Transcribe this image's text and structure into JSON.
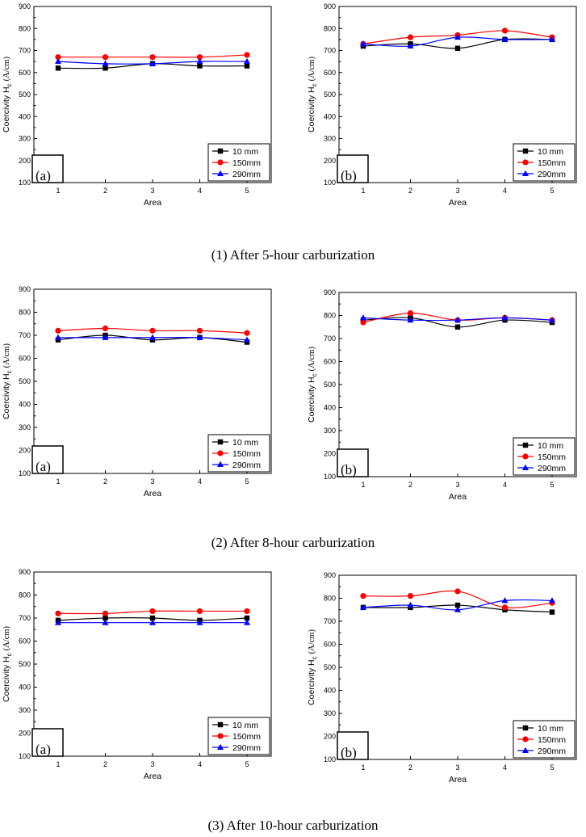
{
  "captions": [
    "(1) After 5-hour carburization",
    "(2) After 8-hour carburization",
    "(3) After 10-hour carburization"
  ],
  "colors": {
    "s10": "#000000",
    "s150": "#ff0000",
    "s290": "#0000ff"
  },
  "chart_data": [
    {
      "type": "line",
      "panel_label": "(a)",
      "xlabel": "Area",
      "ylabel_main": "Coercivity H",
      "ylabel_sub": "c",
      "ylabel_unit": "(A/cm)",
      "categories": [
        "1",
        "2",
        "3",
        "4",
        "5"
      ],
      "yticks": [
        "100",
        "200",
        "300",
        "400",
        "500",
        "600",
        "700",
        "800",
        "900"
      ],
      "ylim": [
        100,
        900
      ],
      "series": [
        {
          "name": "10 mm",
          "marker": "square",
          "values": [
            620,
            620,
            640,
            630,
            630
          ]
        },
        {
          "name": "150mm",
          "marker": "circle",
          "values": [
            670,
            670,
            670,
            670,
            680
          ]
        },
        {
          "name": "290mm",
          "marker": "triangle",
          "values": [
            650,
            640,
            640,
            650,
            650
          ]
        }
      ]
    },
    {
      "type": "line",
      "panel_label": "(b)",
      "xlabel": "Area",
      "ylabel_main": "Coercivity H",
      "ylabel_sub": "c",
      "ylabel_unit": "(A/cm)",
      "categories": [
        "1",
        "2",
        "3",
        "4",
        "5"
      ],
      "yticks": [
        "100",
        "200",
        "300",
        "400",
        "500",
        "600",
        "700",
        "800",
        "900"
      ],
      "ylim": [
        100,
        900
      ],
      "series": [
        {
          "name": "10 mm",
          "marker": "square",
          "values": [
            720,
            730,
            710,
            750,
            750
          ]
        },
        {
          "name": "150mm",
          "marker": "circle",
          "values": [
            730,
            760,
            770,
            790,
            760
          ]
        },
        {
          "name": "290mm",
          "marker": "triangle",
          "values": [
            730,
            720,
            760,
            750,
            750
          ]
        }
      ]
    },
    {
      "type": "line",
      "panel_label": "(a)",
      "xlabel": "Area",
      "ylabel_main": "Coercivity H",
      "ylabel_sub": "c",
      "ylabel_unit": "(A/cm)",
      "categories": [
        "1",
        "2",
        "3",
        "4",
        "5"
      ],
      "yticks": [
        "100",
        "200",
        "300",
        "400",
        "500",
        "600",
        "700",
        "800",
        "900"
      ],
      "ylim": [
        100,
        900
      ],
      "series": [
        {
          "name": "10 mm",
          "marker": "square",
          "values": [
            680,
            700,
            680,
            690,
            670
          ]
        },
        {
          "name": "150mm",
          "marker": "circle",
          "values": [
            720,
            730,
            720,
            720,
            710
          ]
        },
        {
          "name": "290mm",
          "marker": "triangle",
          "values": [
            690,
            690,
            690,
            690,
            680
          ]
        }
      ]
    },
    {
      "type": "line",
      "panel_label": "(b)",
      "xlabel": "Area",
      "ylabel_main": "Coercivity H",
      "ylabel_sub": "c",
      "ylabel_unit": "(A/cm)",
      "categories": [
        "1",
        "2",
        "3",
        "4",
        "5"
      ],
      "yticks": [
        "100",
        "200",
        "300",
        "400",
        "500",
        "600",
        "700",
        "800",
        "900"
      ],
      "ylim": [
        100,
        900
      ],
      "series": [
        {
          "name": "10 mm",
          "marker": "square",
          "values": [
            780,
            790,
            750,
            780,
            770
          ]
        },
        {
          "name": "150mm",
          "marker": "circle",
          "values": [
            770,
            810,
            780,
            790,
            780
          ]
        },
        {
          "name": "290mm",
          "marker": "triangle",
          "values": [
            790,
            780,
            780,
            790,
            780
          ]
        }
      ]
    },
    {
      "type": "line",
      "panel_label": "(a)",
      "xlabel": "Area",
      "ylabel_main": "Coercivity H",
      "ylabel_sub": "c",
      "ylabel_unit": "(A/cm)",
      "categories": [
        "1",
        "2",
        "3",
        "4",
        "5"
      ],
      "yticks": [
        "100",
        "200",
        "300",
        "400",
        "500",
        "600",
        "700",
        "800",
        "900"
      ],
      "ylim": [
        100,
        900
      ],
      "series": [
        {
          "name": "10 mm",
          "marker": "square",
          "values": [
            690,
            700,
            700,
            690,
            700
          ]
        },
        {
          "name": "150mm",
          "marker": "circle",
          "values": [
            720,
            720,
            730,
            730,
            730
          ]
        },
        {
          "name": "290mm",
          "marker": "triangle",
          "values": [
            680,
            680,
            680,
            680,
            680
          ]
        }
      ]
    },
    {
      "type": "line",
      "panel_label": "(b)",
      "xlabel": "Area",
      "ylabel_main": "Coercivity H",
      "ylabel_sub": "c",
      "ylabel_unit": "(A/cm)",
      "categories": [
        "1",
        "2",
        "3",
        "4",
        "5"
      ],
      "yticks": [
        "100",
        "200",
        "300",
        "400",
        "500",
        "600",
        "700",
        "800",
        "900"
      ],
      "ylim": [
        100,
        900
      ],
      "series": [
        {
          "name": "10 mm",
          "marker": "square",
          "values": [
            760,
            760,
            770,
            750,
            740
          ]
        },
        {
          "name": "150mm",
          "marker": "circle",
          "values": [
            810,
            810,
            830,
            760,
            780
          ]
        },
        {
          "name": "290mm",
          "marker": "triangle",
          "values": [
            760,
            770,
            750,
            790,
            790
          ]
        }
      ]
    }
  ]
}
